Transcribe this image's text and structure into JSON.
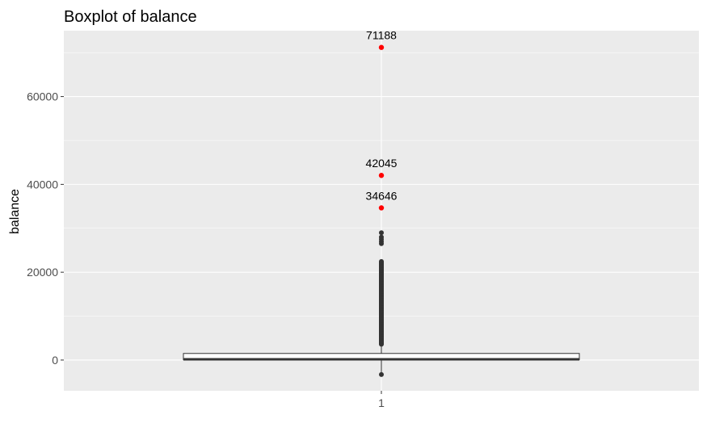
{
  "chart_data": {
    "type": "boxplot",
    "title": "Boxplot of balance",
    "xlabel": "",
    "ylabel": "balance",
    "categories": [
      "1"
    ],
    "ylim": [
      -7000,
      75000
    ],
    "y_ticks": [
      0,
      20000,
      40000,
      60000
    ],
    "grid": true,
    "box": {
      "category": "1",
      "min": 0,
      "q1": 70,
      "median": 450,
      "q3": 1500,
      "max": 3550
    },
    "lower_outliers": [
      -3300
    ],
    "upper_outliers_range": [
      3600,
      29000
    ],
    "upper_outliers_sample": [
      3600,
      4000,
      5000,
      6000,
      7000,
      8000,
      9000,
      10000,
      11000,
      12000,
      13000,
      14000,
      15000,
      16000,
      17000,
      17500,
      18500,
      19000,
      20000,
      20500,
      21000,
      21500,
      22000,
      26500,
      27000,
      27500,
      28000,
      29000
    ],
    "highlighted_outliers": [
      {
        "label": "71188",
        "value": 71188
      },
      {
        "label": "42045",
        "value": 42045
      },
      {
        "label": "34646",
        "value": 34646
      }
    ],
    "colors": {
      "panel": "#ebebeb",
      "grid": "#ffffff",
      "outlier": "#333333",
      "highlight": "#ff0000",
      "box_fill": "#ffffff",
      "box_line": "#333333"
    }
  }
}
